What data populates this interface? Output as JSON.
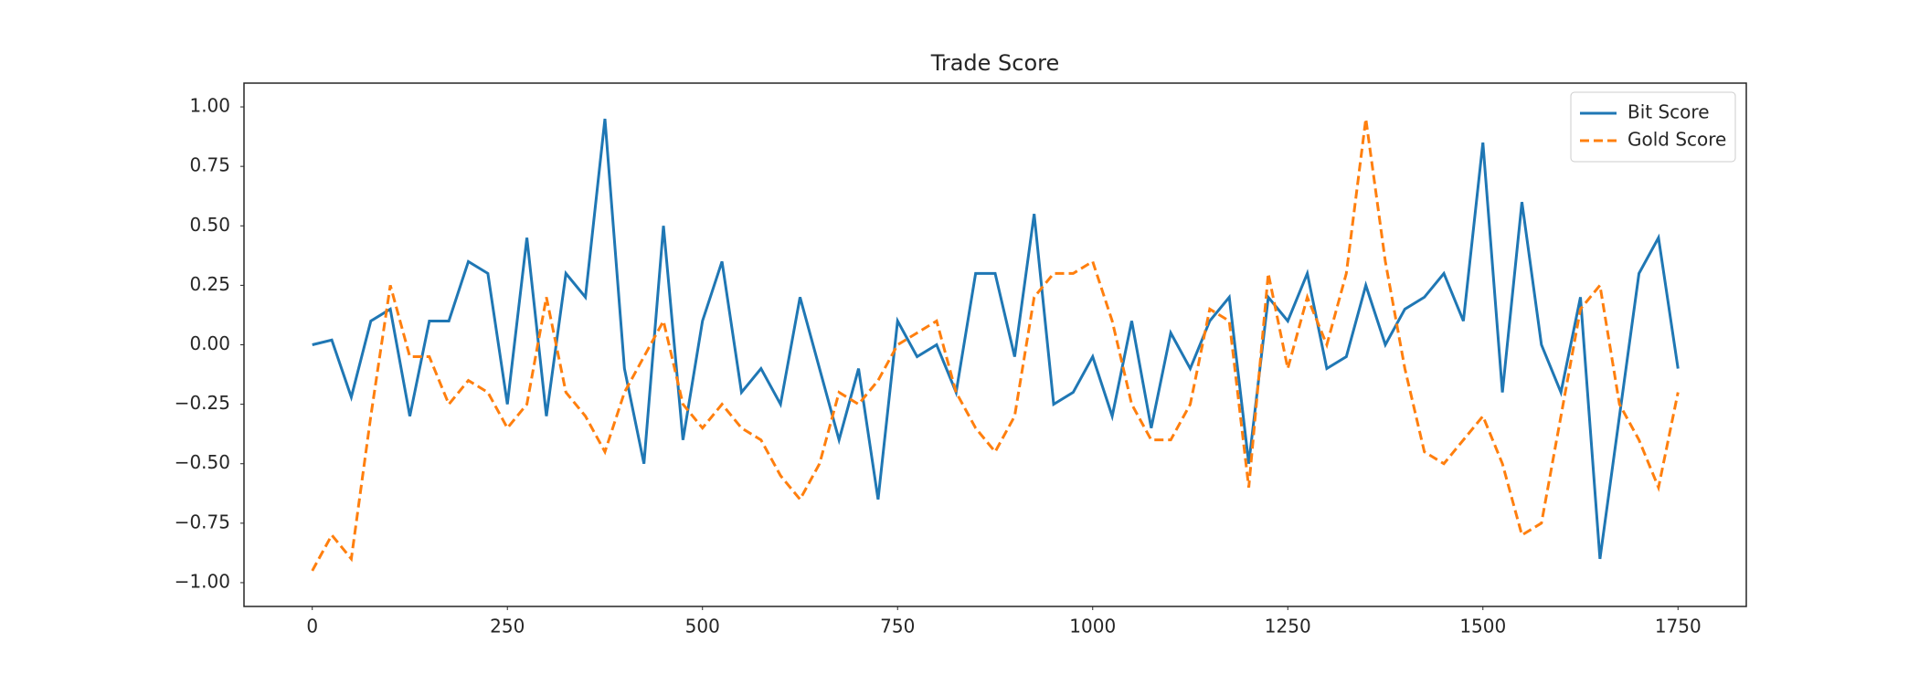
{
  "chart_data": {
    "type": "line",
    "title": "Trade Score",
    "x": [
      0,
      25,
      50,
      75,
      100,
      125,
      150,
      175,
      200,
      225,
      250,
      275,
      300,
      325,
      350,
      375,
      400,
      425,
      450,
      475,
      500,
      525,
      550,
      575,
      600,
      625,
      650,
      675,
      700,
      725,
      750,
      775,
      800,
      825,
      850,
      875,
      900,
      925,
      950,
      975,
      1000,
      1025,
      1050,
      1075,
      1100,
      1125,
      1150,
      1175,
      1200,
      1225,
      1250,
      1275,
      1300,
      1325,
      1350,
      1375,
      1400,
      1425,
      1450,
      1475,
      1500,
      1525,
      1550,
      1575,
      1600,
      1625,
      1650,
      1675,
      1700,
      1725,
      1750
    ],
    "series": [
      {
        "name": "Bit Score",
        "color": "#1f77b4",
        "linestyle": "solid",
        "values": [
          0,
          0.02,
          -0.22,
          0.1,
          0.15,
          -0.3,
          0.1,
          0.1,
          0.35,
          0.3,
          -0.25,
          0.45,
          -0.3,
          0.3,
          0.2,
          0.95,
          -0.1,
          -0.5,
          0.5,
          -0.4,
          0.1,
          0.35,
          -0.2,
          -0.1,
          -0.25,
          0.2,
          -0.1,
          -0.4,
          -0.1,
          -0.65,
          0.1,
          -0.05,
          0,
          -0.2,
          0.3,
          0.3,
          -0.05,
          0.55,
          -0.25,
          -0.2,
          -0.05,
          -0.3,
          0.1,
          -0.35,
          0.05,
          -0.1,
          0.1,
          0.2,
          -0.5,
          0.2,
          0.1,
          0.3,
          -0.1,
          -0.05,
          0.25,
          0,
          0.15,
          0.2,
          0.3,
          0.1,
          0.85,
          -0.2,
          0.6,
          0,
          -0.2,
          0.2,
          -0.9,
          -0.3,
          0.3,
          0.45,
          -0.1
        ]
      },
      {
        "name": "Gold Score",
        "color": "#ff7f0e",
        "linestyle": "dashed",
        "values": [
          -0.95,
          -0.8,
          -0.9,
          -0.3,
          0.25,
          -0.05,
          -0.05,
          -0.25,
          -0.15,
          -0.2,
          -0.35,
          -0.25,
          0.2,
          -0.2,
          -0.3,
          -0.45,
          -0.2,
          -0.05,
          0.1,
          -0.25,
          -0.35,
          -0.25,
          -0.35,
          -0.4,
          -0.55,
          -0.65,
          -0.5,
          -0.2,
          -0.25,
          -0.15,
          0,
          0.05,
          0.1,
          -0.2,
          -0.35,
          -0.45,
          -0.3,
          0.2,
          0.3,
          0.3,
          0.35,
          0.1,
          -0.25,
          -0.4,
          -0.4,
          -0.25,
          0.15,
          0.1,
          -0.6,
          0.3,
          -0.1,
          0.2,
          0,
          0.3,
          0.95,
          0.35,
          -0.1,
          -0.45,
          -0.5,
          -0.4,
          -0.3,
          -0.5,
          -0.8,
          -0.75,
          -0.3,
          0.15,
          0.25,
          -0.25,
          -0.4,
          -0.6,
          -0.2
        ]
      }
    ],
    "xlim": [
      -87.5,
      1837.5
    ],
    "ylim": [
      -1.1,
      1.1
    ],
    "xticks": [
      0,
      250,
      500,
      750,
      1000,
      1250,
      1500,
      1750
    ],
    "yticks": [
      {
        "value": 1,
        "label": "1.00"
      },
      {
        "value": 0.75,
        "label": "0.75"
      },
      {
        "value": 0.5,
        "label": "0.50"
      },
      {
        "value": 0.25,
        "label": "0.25"
      },
      {
        "value": 0,
        "label": "0.00"
      },
      {
        "value": -0.25,
        "label": "−0.25"
      },
      {
        "value": -0.5,
        "label": "−0.50"
      },
      {
        "value": -0.75,
        "label": "−0.75"
      },
      {
        "value": -1,
        "label": "−1.00"
      }
    ],
    "grid": false,
    "legend": "upper right"
  }
}
